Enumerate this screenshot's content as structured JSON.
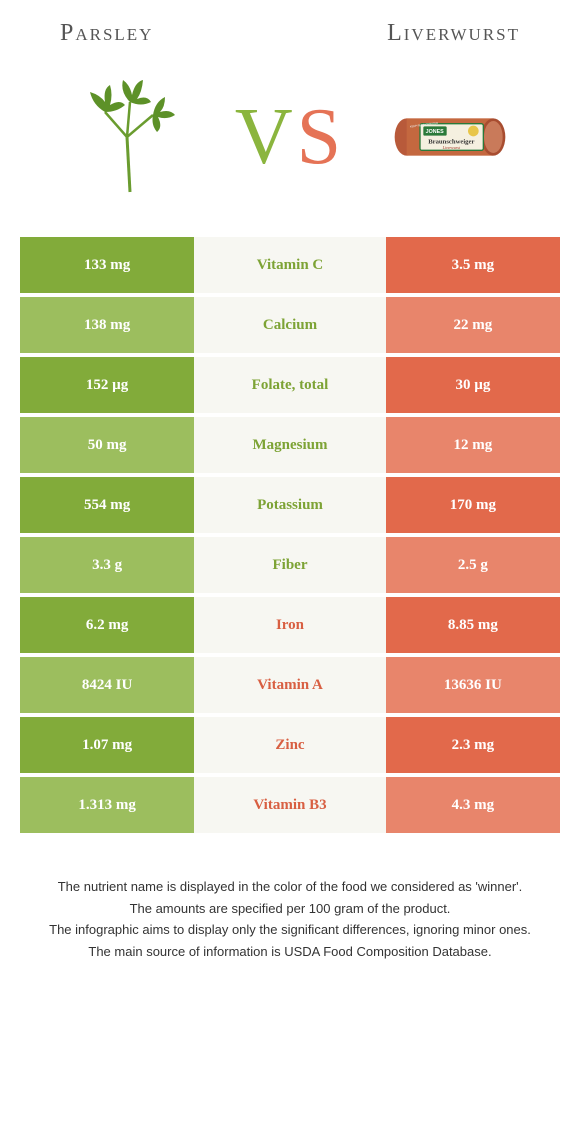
{
  "header": {
    "left_title": "Parsley",
    "right_title": "Liverwurst",
    "vs_v": "V",
    "vs_s": "S"
  },
  "colors": {
    "left_dark": "#82ab3a",
    "left_light": "#9cbe5e",
    "right_dark": "#e2694b",
    "right_light": "#e8856b",
    "mid_bg": "#f7f7f2",
    "mid_left_text": "#7da335",
    "mid_right_text": "#d85f42",
    "title_color": "#555555",
    "footer_color": "#333333"
  },
  "rows": [
    {
      "left": "133 mg",
      "mid": "Vitamin C",
      "right": "3.5 mg",
      "winner": "left"
    },
    {
      "left": "138 mg",
      "mid": "Calcium",
      "right": "22 mg",
      "winner": "left"
    },
    {
      "left": "152 µg",
      "mid": "Folate, total",
      "right": "30 µg",
      "winner": "left"
    },
    {
      "left": "50 mg",
      "mid": "Magnesium",
      "right": "12 mg",
      "winner": "left"
    },
    {
      "left": "554 mg",
      "mid": "Potassium",
      "right": "170 mg",
      "winner": "left"
    },
    {
      "left": "3.3 g",
      "mid": "Fiber",
      "right": "2.5 g",
      "winner": "left"
    },
    {
      "left": "6.2 mg",
      "mid": "Iron",
      "right": "8.85 mg",
      "winner": "right"
    },
    {
      "left": "8424 IU",
      "mid": "Vitamin A",
      "right": "13636 IU",
      "winner": "right"
    },
    {
      "left": "1.07 mg",
      "mid": "Zinc",
      "right": "2.3 mg",
      "winner": "right"
    },
    {
      "left": "1.313 mg",
      "mid": "Vitamin B3",
      "right": "4.3 mg",
      "winner": "right"
    }
  ],
  "footer": {
    "line1": "The nutrient name is displayed in the color of the food we considered as 'winner'.",
    "line2": "The amounts are specified per 100 gram of the product.",
    "line3": "The infographic aims to display only the significant differences, ignoring minor ones.",
    "line4": "The main source of information is USDA Food Composition Database."
  }
}
